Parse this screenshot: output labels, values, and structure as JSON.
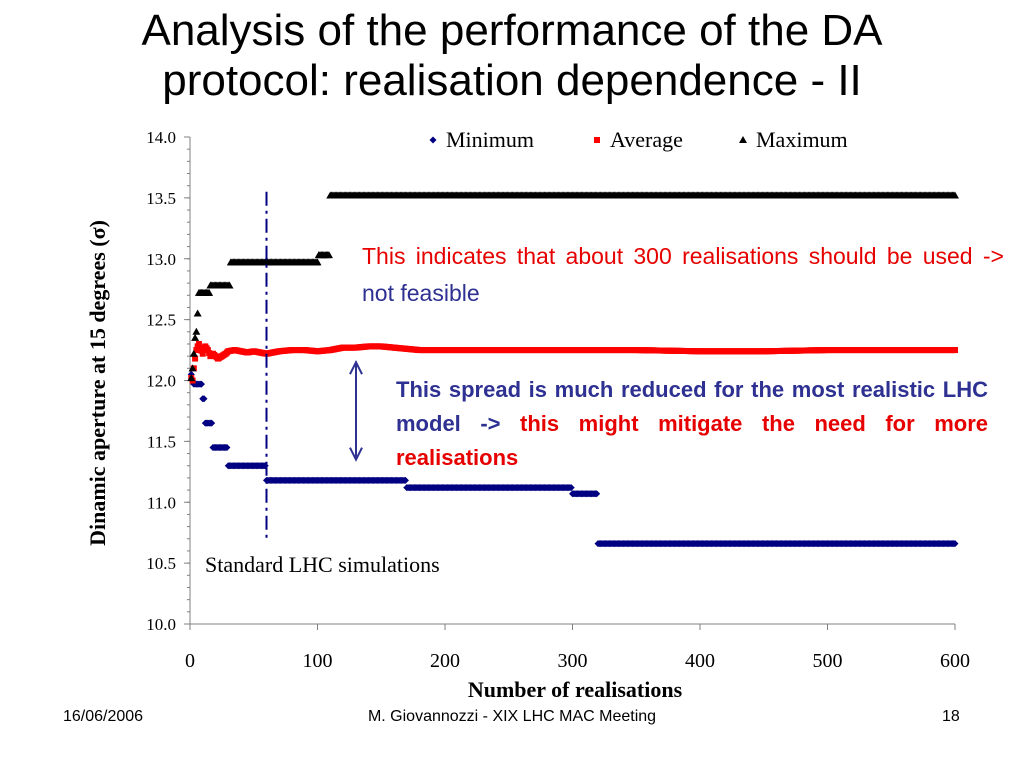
{
  "slide": {
    "title_line1": "Analysis of the performance of the DA",
    "title_line2": "protocol: realisation dependence - II",
    "annotation_red_text": "This indicates that about 300 realisations should be used ->",
    "annotation_red_blue_text": "not feasible",
    "annotation_blue_text": "This spread is much reduced for the most realistic LHC model ->",
    "annotation_blue_red_text": "this might mitigate the need for more realisations",
    "vline_label": "Standard LHC simulations",
    "footer_date": "16/06/2006",
    "footer_center": "M. Giovannozzi - XIX LHC MAC Meeting",
    "footer_page": "18"
  },
  "chart_data": {
    "type": "scatter",
    "title": "",
    "xlabel": "Number of realisations",
    "ylabel": "Dinamic aperture at 15 degrees (σ)",
    "xlim": [
      0,
      600
    ],
    "ylim": [
      10.0,
      14.0
    ],
    "x_ticks": [
      "0",
      "100",
      "200",
      "300",
      "400",
      "500",
      "600"
    ],
    "y_ticks": [
      "10.0",
      "10.5",
      "11.0",
      "11.5",
      "12.0",
      "12.5",
      "13.0",
      "13.5",
      "14.0"
    ],
    "legend_position": "top-right",
    "colors": {
      "minimum": "#000080",
      "average": "#ff0000",
      "maximum": "#000000",
      "vline": "#000080",
      "arrow": "#2e3192"
    },
    "reference_x": 60,
    "arrow_range": [
      11.35,
      12.15
    ],
    "series": [
      {
        "name": "Minimum",
        "marker": "diamond",
        "x": [
          1,
          2,
          3,
          4,
          5,
          6,
          8,
          10,
          12,
          15,
          18,
          22,
          26,
          30,
          40,
          50,
          56,
          60,
          80,
          100,
          120,
          140,
          160,
          166,
          170,
          200,
          240,
          280,
          294,
          300,
          310,
          316,
          320,
          400,
          500,
          600
        ],
        "y": [
          12.05,
          12.0,
          11.97,
          11.97,
          11.97,
          11.97,
          11.97,
          11.85,
          11.65,
          11.65,
          11.45,
          11.45,
          11.45,
          11.3,
          11.3,
          11.3,
          11.3,
          11.18,
          11.18,
          11.18,
          11.18,
          11.18,
          11.18,
          11.18,
          11.12,
          11.12,
          11.12,
          11.12,
          11.12,
          11.07,
          11.07,
          11.07,
          10.66,
          10.66,
          10.66,
          10.66
        ]
      },
      {
        "name": "Average",
        "marker": "square",
        "x": [
          1,
          2,
          3,
          4,
          5,
          6,
          7,
          8,
          10,
          12,
          14,
          16,
          18,
          20,
          22,
          25,
          28,
          30,
          35,
          40,
          45,
          50,
          55,
          60,
          70,
          80,
          90,
          100,
          110,
          120,
          130,
          140,
          150,
          160,
          170,
          180,
          200,
          220,
          250,
          300,
          350,
          400,
          450,
          500,
          550,
          600
        ],
        "y": [
          12.02,
          12.0,
          12.1,
          12.18,
          12.25,
          12.28,
          12.3,
          12.27,
          12.22,
          12.28,
          12.25,
          12.2,
          12.22,
          12.2,
          12.18,
          12.2,
          12.22,
          12.24,
          12.25,
          12.24,
          12.23,
          12.24,
          12.23,
          12.22,
          12.24,
          12.25,
          12.25,
          12.24,
          12.25,
          12.27,
          12.27,
          12.28,
          12.28,
          12.27,
          12.26,
          12.25,
          12.25,
          12.25,
          12.25,
          12.25,
          12.25,
          12.24,
          12.24,
          12.25,
          12.25,
          12.25
        ]
      },
      {
        "name": "Maximum",
        "marker": "triangle",
        "x": [
          1,
          2,
          3,
          4,
          5,
          6,
          7,
          8,
          10,
          12,
          14,
          16,
          20,
          25,
          30,
          32,
          40,
          50,
          60,
          80,
          100,
          101,
          105,
          110,
          200,
          300,
          400,
          500,
          600
        ],
        "y": [
          12.02,
          12.1,
          12.22,
          12.35,
          12.4,
          12.55,
          12.72,
          12.72,
          12.72,
          12.72,
          12.72,
          12.78,
          12.78,
          12.78,
          12.78,
          12.97,
          12.97,
          12.97,
          12.97,
          12.97,
          12.97,
          13.03,
          13.03,
          13.52,
          13.52,
          13.52,
          13.52,
          13.52,
          13.52
        ]
      }
    ]
  }
}
